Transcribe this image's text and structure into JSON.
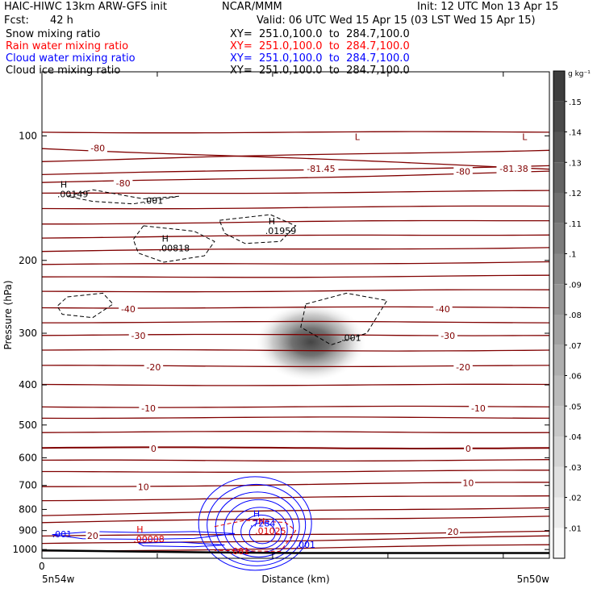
{
  "header": {
    "title": "HAIC-HIWC 13km ARW-GFS init",
    "org": "NCAR/MMM",
    "init": "Init: 12 UTC Mon 13 Apr 15",
    "fcst_label": "Fcst:",
    "fcst_value": "42 h",
    "valid": "Valid: 06 UTC Wed 15 Apr 15 (03 LST Wed 15 Apr 15)"
  },
  "fields": [
    {
      "name": "Snow mixing ratio",
      "xy": "XY=  251.0,100.0  to  284.7,100.0",
      "color": "#000000"
    },
    {
      "name": "Rain water mixing ratio",
      "xy": "XY=  251.0,100.0  to  284.7,100.0",
      "color": "#ff0000"
    },
    {
      "name": "Cloud water mixing ratio",
      "xy": "XY=  251.0,100.0  to  284.7,100.0",
      "color": "#0000ff"
    },
    {
      "name": "Cloud ice mixing ratio",
      "xy": "XY=  251.0,100.0  to  284.7,100.0",
      "color": "#000000"
    }
  ],
  "colors": {
    "temperature": "#800000",
    "cloud_water": "#0000ff",
    "rain": "#e00000",
    "snow": "#000000",
    "terrain": "#000000"
  },
  "chart_data": {
    "type": "heatmap",
    "xlabel": "Distance (km)",
    "ylabel": "Pressure (hPa)",
    "x_tick_labels": [
      "0"
    ],
    "x_end_labels": [
      "5n54w",
      "5n50w"
    ],
    "y_ticks": [
      100,
      200,
      300,
      400,
      500,
      600,
      700,
      800,
      900,
      1000
    ],
    "y_scale": "log",
    "ylim": [
      1050,
      70
    ],
    "colorbar": {
      "units": "g kg⁻¹",
      "ticks": [
        ".01",
        ".02",
        ".03",
        ".04",
        ".05",
        ".06",
        ".07",
        ".08",
        ".09",
        ".1",
        ".11",
        ".12",
        ".13",
        ".14",
        ".15"
      ],
      "levels": [
        0.01,
        0.02,
        0.03,
        0.04,
        0.05,
        0.06,
        0.07,
        0.08,
        0.09,
        0.1,
        0.11,
        0.12,
        0.13,
        0.14,
        0.15
      ],
      "range": [
        0.0,
        0.16
      ]
    },
    "cloud_ice_max": {
      "x_frac": 0.53,
      "p": 315
    },
    "temperature_contours": [
      {
        "label": "-80",
        "p_left": 107,
        "p_right": 120
      },
      {
        "label": "-80",
        "p_left": 130,
        "p_right": 122
      },
      {
        "label": "-40",
        "p_left": 260,
        "p_right": 260
      },
      {
        "label": "-30",
        "p_left": 303,
        "p_right": 303
      },
      {
        "label": "-20",
        "p_left": 360,
        "p_right": 360
      },
      {
        "label": "-10",
        "p_left": 452,
        "p_right": 452
      },
      {
        "label": "0",
        "p_left": 568,
        "p_right": 568
      },
      {
        "label": "10",
        "p_left": 705,
        "p_right": 688
      },
      {
        "label": "20",
        "p_left": 930,
        "p_right": 905
      }
    ],
    "temperature_labels": [
      {
        "text": "-80",
        "x_frac": 0.11,
        "p": 107
      },
      {
        "text": "-80",
        "x_frac": 0.16,
        "p": 130
      },
      {
        "text": "-81.45",
        "x_frac": 0.55,
        "p": 120
      },
      {
        "text": "-80",
        "x_frac": 0.83,
        "p": 122
      },
      {
        "text": "-81.38",
        "x_frac": 0.93,
        "p": 120
      },
      {
        "text": "-40",
        "x_frac": 0.17,
        "p": 262
      },
      {
        "text": "-40",
        "x_frac": 0.79,
        "p": 262
      },
      {
        "text": "-30",
        "x_frac": 0.19,
        "p": 304
      },
      {
        "text": "-30",
        "x_frac": 0.8,
        "p": 304
      },
      {
        "text": "-20",
        "x_frac": 0.22,
        "p": 362
      },
      {
        "text": "-20",
        "x_frac": 0.83,
        "p": 362
      },
      {
        "text": "-10",
        "x_frac": 0.21,
        "p": 455
      },
      {
        "text": "-10",
        "x_frac": 0.86,
        "p": 455
      },
      {
        "text": "0",
        "x_frac": 0.22,
        "p": 570
      },
      {
        "text": "0",
        "x_frac": 0.84,
        "p": 570
      },
      {
        "text": "10",
        "x_frac": 0.2,
        "p": 705
      },
      {
        "text": "10",
        "x_frac": 0.84,
        "p": 690
      },
      {
        "text": "20",
        "x_frac": 0.1,
        "p": 925
      },
      {
        "text": "20",
        "x_frac": 0.81,
        "p": 905
      }
    ],
    "maxima_labels": [
      {
        "marker": "H",
        "text": ".00149",
        "x_frac": 0.03,
        "p": 137,
        "color": "#000000"
      },
      {
        "marker": "",
        "text": ".001",
        "x_frac": 0.2,
        "p": 142,
        "color": "#000000"
      },
      {
        "marker": "H",
        "text": ".00818",
        "x_frac": 0.23,
        "p": 185,
        "color": "#000000"
      },
      {
        "marker": "H",
        "text": ".01959",
        "x_frac": 0.44,
        "p": 168,
        "color": "#000000"
      },
      {
        "marker": "",
        "text": ".001",
        "x_frac": 0.59,
        "p": 305,
        "color": "#000000"
      },
      {
        "marker": "L",
        "text": "",
        "x_frac": 0.61,
        "p": 105,
        "color": "#800000"
      },
      {
        "marker": "L",
        "text": "",
        "x_frac": 0.94,
        "p": 105,
        "color": "#800000"
      },
      {
        "marker": "H",
        "text": ".7284",
        "x_frac": 0.41,
        "p": 855,
        "color": "#0000ff"
      },
      {
        "marker": "H",
        "text": ".01025",
        "x_frac": 0.42,
        "p": 893,
        "color": "#e00000"
      },
      {
        "marker": "",
        "text": ".001",
        "x_frac": 0.02,
        "p": 910,
        "color": "#0000ff"
      },
      {
        "marker": "H",
        "text": ".00008",
        "x_frac": 0.18,
        "p": 935,
        "color": "#e00000"
      },
      {
        "marker": "",
        "text": ".001",
        "x_frac": 0.5,
        "p": 965,
        "color": "#0000ff"
      },
      {
        "marker": "",
        "text": ".001",
        "x_frac": 0.37,
        "p": 1000,
        "color": "#e00000"
      }
    ]
  }
}
